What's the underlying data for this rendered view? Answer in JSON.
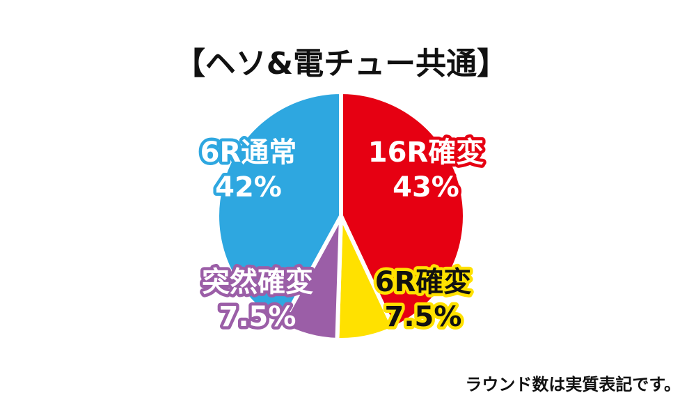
{
  "chart_data": {
    "type": "pie",
    "title": "【ヘソ&電チュー共通】",
    "slices": [
      {
        "name": "16R確変",
        "value": 43,
        "value_label": "43%",
        "color": "#e60012",
        "label_style": "light",
        "outline": "#e60012"
      },
      {
        "name": "6R確変",
        "value": 7.5,
        "value_label": "7.5%",
        "color": "#ffe100",
        "label_style": "dark",
        "outline": "#ffe100"
      },
      {
        "name": "突然確変",
        "value": 7.5,
        "value_label": "7.5%",
        "color": "#9b5ea7",
        "label_style": "light",
        "outline": "#9b5ea7"
      },
      {
        "name": "6R通常",
        "value": 42,
        "value_label": "42%",
        "color": "#2ea7e0",
        "label_style": "light",
        "outline": "#2ea7e0"
      }
    ],
    "note": "ラウンド数は実質表記です。"
  }
}
